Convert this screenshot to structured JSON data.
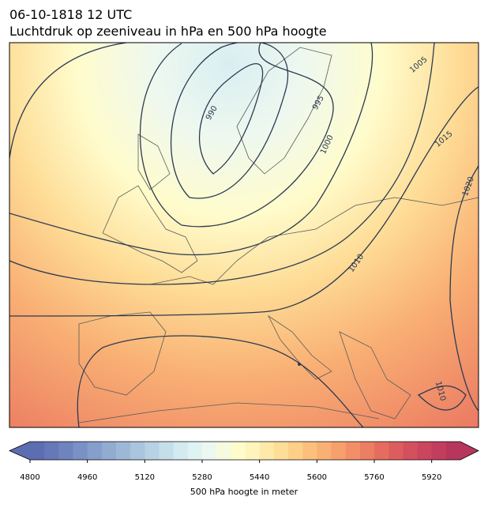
{
  "title": "06-10-1818 12 UTC",
  "subtitle": "Luchtdruk op zeeniveau in hPa en 500 hPa hoogte",
  "contour_labels": [
    "990",
    "995",
    "1000",
    "1005",
    "1015",
    "1020",
    "1010",
    "1010"
  ],
  "colorbar": {
    "label": "500 hPa hoogte in meter",
    "lim": [
      4800,
      6000
    ],
    "ticks": [
      4800,
      4960,
      5120,
      5280,
      5440,
      5600,
      5760,
      5920
    ],
    "colors": [
      "#5d6db1",
      "#6678b8",
      "#6f84bf",
      "#7a91c5",
      "#859ecb",
      "#91abd1",
      "#9db8d7",
      "#aac5dd",
      "#b7d2e4",
      "#c5dfea",
      "#d3ebf0",
      "#e0f3f3",
      "#ecf8ef",
      "#f6fbe0",
      "#fffccc",
      "#fff4bb",
      "#ffe9a9",
      "#fedd97",
      "#fdcf88",
      "#fcbf7c",
      "#f9b074",
      "#f6a06e",
      "#f28f68",
      "#ec7e63",
      "#e46d60",
      "#dd5d5e",
      "#d4505e",
      "#cb455f",
      "#c23d5e",
      "#b6365c"
    ]
  }
}
